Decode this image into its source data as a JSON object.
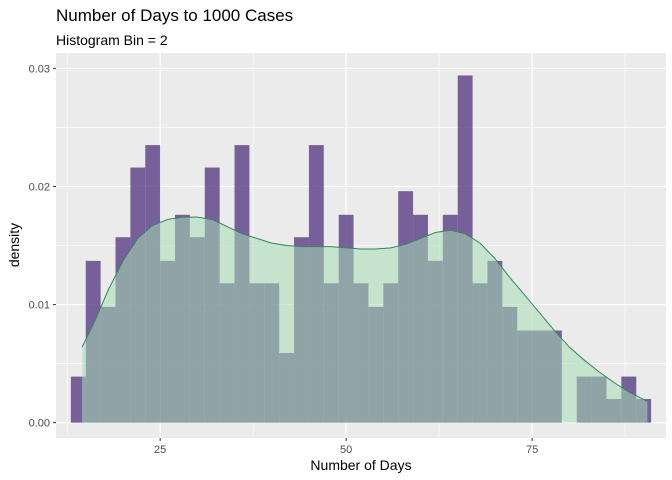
{
  "chart_data": {
    "type": "histogram",
    "title": "Number of Days to 1000 Cases",
    "subtitle": "Histogram Bin = 2",
    "xlabel": "Number of Days",
    "ylabel": "density",
    "xlim": [
      11,
      93
    ],
    "ylim": [
      -0.0013,
      0.0313
    ],
    "x_ticks": [
      25,
      50,
      75
    ],
    "y_ticks": [
      0.0,
      0.01,
      0.02,
      0.03
    ],
    "y_tick_labels": [
      "0.00",
      "0.01",
      "0.02",
      "0.03"
    ],
    "bin_width": 2,
    "grid": true,
    "histogram_color": "#5a3d86",
    "density_fill": "#a6dcb4",
    "density_line": "#2e8b57",
    "bins": [
      {
        "center": 14,
        "density": 0.0039
      },
      {
        "center": 16,
        "density": 0.0137
      },
      {
        "center": 18,
        "density": 0.0098
      },
      {
        "center": 20,
        "density": 0.0157
      },
      {
        "center": 22,
        "density": 0.0216
      },
      {
        "center": 24,
        "density": 0.0235
      },
      {
        "center": 26,
        "density": 0.0137
      },
      {
        "center": 28,
        "density": 0.0176
      },
      {
        "center": 30,
        "density": 0.0157
      },
      {
        "center": 32,
        "density": 0.0216
      },
      {
        "center": 34,
        "density": 0.0118
      },
      {
        "center": 36,
        "density": 0.0235
      },
      {
        "center": 38,
        "density": 0.0118
      },
      {
        "center": 40,
        "density": 0.0118
      },
      {
        "center": 42,
        "density": 0.0059
      },
      {
        "center": 44,
        "density": 0.0157
      },
      {
        "center": 46,
        "density": 0.0235
      },
      {
        "center": 48,
        "density": 0.0118
      },
      {
        "center": 50,
        "density": 0.0176
      },
      {
        "center": 52,
        "density": 0.0118
      },
      {
        "center": 54,
        "density": 0.0098
      },
      {
        "center": 56,
        "density": 0.0118
      },
      {
        "center": 58,
        "density": 0.0196
      },
      {
        "center": 60,
        "density": 0.0176
      },
      {
        "center": 62,
        "density": 0.0137
      },
      {
        "center": 64,
        "density": 0.0176
      },
      {
        "center": 66,
        "density": 0.0294
      },
      {
        "center": 68,
        "density": 0.0118
      },
      {
        "center": 70,
        "density": 0.0137
      },
      {
        "center": 72,
        "density": 0.0098
      },
      {
        "center": 74,
        "density": 0.0078
      },
      {
        "center": 76,
        "density": 0.0078
      },
      {
        "center": 78,
        "density": 0.0078
      },
      {
        "center": 80,
        "density": 0.0
      },
      {
        "center": 82,
        "density": 0.0039
      },
      {
        "center": 84,
        "density": 0.0039
      },
      {
        "center": 86,
        "density": 0.002
      },
      {
        "center": 88,
        "density": 0.0039
      },
      {
        "center": 90,
        "density": 0.002
      }
    ],
    "density_curve": {
      "x": [
        14.5,
        16,
        18,
        20,
        22,
        24,
        26,
        28,
        30,
        32,
        34,
        36,
        38,
        40,
        42,
        44,
        46,
        48,
        50,
        52,
        54,
        56,
        58,
        60,
        62,
        64,
        66,
        68,
        70,
        72,
        74,
        76,
        78,
        80,
        82,
        84,
        86,
        88,
        90.5
      ],
      "y": [
        0.0064,
        0.0083,
        0.0112,
        0.0137,
        0.0156,
        0.0167,
        0.0172,
        0.0174,
        0.0174,
        0.0172,
        0.0166,
        0.016,
        0.0156,
        0.0152,
        0.015,
        0.0149,
        0.0149,
        0.0149,
        0.0148,
        0.0147,
        0.0147,
        0.0148,
        0.0151,
        0.0156,
        0.0161,
        0.0163,
        0.016,
        0.0152,
        0.0139,
        0.0123,
        0.0108,
        0.0093,
        0.0078,
        0.0064,
        0.0053,
        0.0043,
        0.0034,
        0.0026,
        0.0018
      ]
    }
  }
}
